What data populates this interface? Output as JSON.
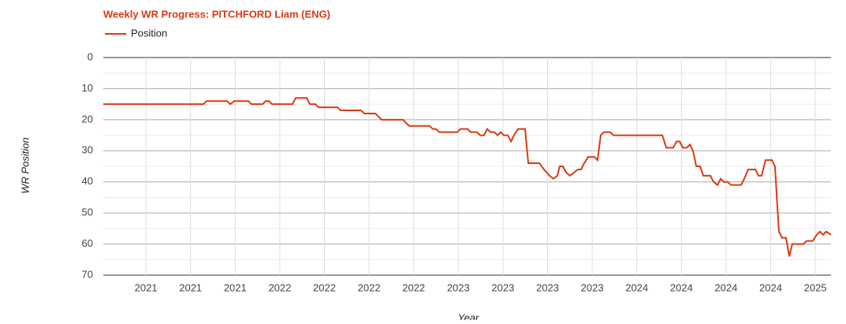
{
  "chart_data": {
    "type": "line",
    "title": "Weekly WR Progress: PITCHFORD Liam (ENG)",
    "x_label": "Year",
    "y_label": "WR Position",
    "legend": "top-left",
    "grid": true,
    "xlim": [
      2021.011,
      2025.088
    ],
    "ylim": [
      70,
      0
    ],
    "yticks": [
      0,
      10,
      20,
      30,
      40,
      50,
      60,
      70
    ],
    "minor_yticks": [
      5,
      15,
      25,
      35,
      45,
      55,
      65
    ],
    "xticks": [
      {
        "value": 2021.25,
        "label": "2021"
      },
      {
        "value": 2021.5,
        "label": "2021"
      },
      {
        "value": 2021.75,
        "label": "2021"
      },
      {
        "value": 2022.0,
        "label": "2022"
      },
      {
        "value": 2022.25,
        "label": "2022"
      },
      {
        "value": 2022.5,
        "label": "2022"
      },
      {
        "value": 2022.75,
        "label": "2022"
      },
      {
        "value": 2023.0,
        "label": "2023"
      },
      {
        "value": 2023.25,
        "label": "2023"
      },
      {
        "value": 2023.5,
        "label": "2023"
      },
      {
        "value": 2023.75,
        "label": "2023"
      },
      {
        "value": 2024.0,
        "label": "2024"
      },
      {
        "value": 2024.25,
        "label": "2024"
      },
      {
        "value": 2024.5,
        "label": "2024"
      },
      {
        "value": 2024.75,
        "label": "2024"
      },
      {
        "value": 2025.0,
        "label": "2025"
      }
    ],
    "x": [
      2021.011,
      2021.572,
      2021.59,
      2021.704,
      2021.722,
      2021.744,
      2021.824,
      2021.841,
      2021.903,
      2021.921,
      2021.939,
      2021.956,
      2022.071,
      2022.089,
      2022.151,
      2022.168,
      2022.199,
      2022.217,
      2022.323,
      2022.341,
      2022.455,
      2022.473,
      2022.535,
      2022.57,
      2022.689,
      2022.725,
      2022.84,
      2022.857,
      2022.875,
      2022.893,
      2022.994,
      2023.012,
      2023.052,
      2023.069,
      2023.105,
      2023.122,
      2023.144,
      2023.162,
      2023.18,
      2023.202,
      2023.22,
      2023.237,
      2023.255,
      2023.277,
      2023.295,
      2023.312,
      2023.334,
      2023.374,
      2023.392,
      2023.454,
      2023.48,
      2023.511,
      2023.533,
      2023.555,
      2023.568,
      2023.586,
      2023.604,
      2023.626,
      2023.648,
      2023.67,
      2023.688,
      2023.705,
      2023.727,
      2023.763,
      2023.78,
      2023.798,
      2023.816,
      2023.851,
      2023.869,
      2024.143,
      2024.165,
      2024.204,
      2024.222,
      2024.24,
      2024.257,
      2024.28,
      2024.297,
      2024.315,
      2024.333,
      2024.355,
      2024.372,
      2024.412,
      2024.43,
      2024.452,
      2024.47,
      2024.487,
      2024.509,
      2024.527,
      2024.584,
      2024.602,
      2024.624,
      2024.664,
      2024.682,
      2024.699,
      2024.721,
      2024.757,
      2024.774,
      2024.796,
      2024.814,
      2024.836,
      2024.854,
      2024.871,
      2024.933,
      2024.951,
      2024.986,
      2025.008,
      2025.026,
      2025.044,
      2025.061,
      2025.088
    ],
    "series": [
      {
        "name": "Position",
        "color": "#dc3912",
        "values": [
          15,
          15,
          14,
          14,
          15,
          14,
          14,
          15,
          15,
          14,
          14,
          15,
          15,
          13,
          13,
          15,
          15,
          16,
          16,
          17,
          17,
          18,
          18,
          20,
          20,
          22,
          22,
          23,
          23,
          24,
          24,
          23,
          23,
          24,
          24,
          25,
          25,
          23,
          24,
          24,
          25,
          24,
          25,
          25,
          27,
          25,
          23,
          23,
          34,
          34,
          36,
          38,
          39,
          38,
          35,
          35,
          37,
          38,
          37,
          36,
          36,
          34,
          32,
          32,
          33,
          25,
          24,
          24,
          25,
          25,
          29,
          29,
          27,
          27,
          29,
          29,
          28,
          30,
          35,
          35,
          38,
          38,
          40,
          41,
          39,
          40,
          40,
          41,
          41,
          39,
          36,
          36,
          38,
          38,
          33,
          33,
          35,
          56,
          58,
          58,
          64,
          60,
          60,
          59,
          59,
          57,
          56,
          57,
          56,
          57
        ]
      }
    ]
  }
}
